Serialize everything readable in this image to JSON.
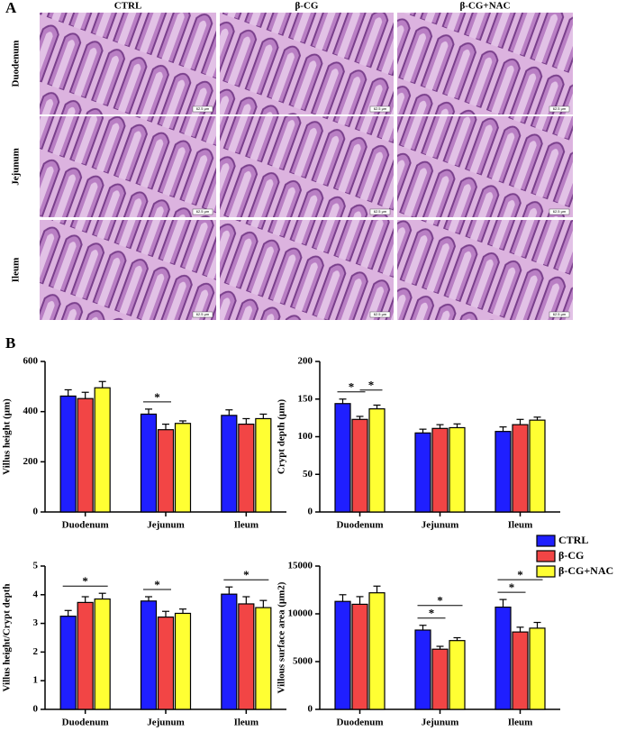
{
  "panel_a": {
    "label": "A",
    "columns": [
      "CTRL",
      "β-CG",
      "β-CG+NAC"
    ],
    "rows": [
      "Duodenum",
      "Jejunum",
      "Ileum"
    ],
    "scale_bar": "62.5 μm"
  },
  "panel_b_label": "B",
  "chart_data": [
    {
      "type": "bar",
      "ylabel": "Villus height (μm)",
      "categories": [
        "Duodenum",
        "Jejunum",
        "Ileum"
      ],
      "series": [
        {
          "name": "CTRL",
          "color": "#1f1fff",
          "values": [
            462,
            390,
            385
          ],
          "errors": [
            25,
            20,
            22
          ]
        },
        {
          "name": "β-CG",
          "color": "#f24545",
          "values": [
            452,
            328,
            350
          ],
          "errors": [
            25,
            22,
            22
          ]
        },
        {
          "name": "β-CG+NAC",
          "color": "#ffff33",
          "values": [
            495,
            353,
            372
          ],
          "errors": [
            25,
            10,
            18
          ]
        }
      ],
      "ylim": [
        0,
        600
      ],
      "yticks": [
        0,
        200,
        400,
        600
      ],
      "significance": [
        {
          "category": "Jejunum",
          "groups": [
            "CTRL",
            "β-CG"
          ],
          "label": "*"
        }
      ]
    },
    {
      "type": "bar",
      "ylabel": "Crypt depth (μm)",
      "categories": [
        "Duodenum",
        "Jejunum",
        "Ileum"
      ],
      "series": [
        {
          "name": "CTRL",
          "color": "#1f1fff",
          "values": [
            144,
            105,
            107
          ],
          "errors": [
            6,
            5,
            6
          ]
        },
        {
          "name": "β-CG",
          "color": "#f24545",
          "values": [
            123,
            111,
            116
          ],
          "errors": [
            4,
            5,
            7
          ]
        },
        {
          "name": "β-CG+NAC",
          "color": "#ffff33",
          "values": [
            137,
            112,
            122
          ],
          "errors": [
            5,
            5,
            4
          ]
        }
      ],
      "ylim": [
        0,
        200
      ],
      "yticks": [
        0,
        50,
        100,
        150,
        200
      ],
      "significance": [
        {
          "category": "Duodenum",
          "groups": [
            "CTRL",
            "β-CG"
          ],
          "label": "*"
        },
        {
          "category": "Duodenum",
          "groups": [
            "β-CG",
            "β-CG+NAC"
          ],
          "label": "*"
        }
      ]
    },
    {
      "type": "bar",
      "ylabel": "Villus height/Crypt depth",
      "categories": [
        "Duodenum",
        "Jejunum",
        "Ileum"
      ],
      "series": [
        {
          "name": "CTRL",
          "color": "#1f1fff",
          "values": [
            3.25,
            3.78,
            4.02
          ],
          "errors": [
            0.2,
            0.15,
            0.25
          ]
        },
        {
          "name": "β-CG",
          "color": "#f24545",
          "values": [
            3.73,
            3.22,
            3.68
          ],
          "errors": [
            0.2,
            0.2,
            0.25
          ]
        },
        {
          "name": "β-CG+NAC",
          "color": "#ffff33",
          "values": [
            3.85,
            3.35,
            3.55
          ],
          "errors": [
            0.2,
            0.15,
            0.25
          ]
        }
      ],
      "ylim": [
        0,
        5
      ],
      "yticks": [
        0,
        1,
        2,
        3,
        4,
        5
      ],
      "significance": [
        {
          "category": "Duodenum",
          "groups": [
            "CTRL",
            "β-CG+NAC"
          ],
          "label": "*"
        },
        {
          "category": "Jejunum",
          "groups": [
            "CTRL",
            "β-CG"
          ],
          "label": "*"
        },
        {
          "category": "Ileum",
          "groups": [
            "CTRL",
            "β-CG+NAC"
          ],
          "label": "*"
        }
      ]
    },
    {
      "type": "bar",
      "ylabel": "Villous surface area (μm2)",
      "categories": [
        "Duodenum",
        "Jejunum",
        "Ileum"
      ],
      "series": [
        {
          "name": "CTRL",
          "color": "#1f1fff",
          "values": [
            11300,
            8300,
            10700
          ],
          "errors": [
            700,
            500,
            800
          ]
        },
        {
          "name": "β-CG",
          "color": "#f24545",
          "values": [
            11000,
            6300,
            8100
          ],
          "errors": [
            800,
            300,
            500
          ]
        },
        {
          "name": "β-CG+NAC",
          "color": "#ffff33",
          "values": [
            12200,
            7200,
            8500
          ],
          "errors": [
            700,
            300,
            600
          ]
        }
      ],
      "ylim": [
        0,
        15000
      ],
      "yticks": [
        0,
        5000,
        10000,
        15000
      ],
      "legend": "top-right",
      "significance": [
        {
          "category": "Jejunum",
          "groups": [
            "CTRL",
            "β-CG"
          ],
          "label": "*"
        },
        {
          "category": "Jejunum",
          "groups": [
            "CTRL",
            "β-CG+NAC"
          ],
          "label": "*"
        },
        {
          "category": "Ileum",
          "groups": [
            "CTRL",
            "β-CG"
          ],
          "label": "*"
        },
        {
          "category": "Ileum",
          "groups": [
            "CTRL",
            "β-CG+NAC"
          ],
          "label": "*"
        }
      ]
    }
  ]
}
